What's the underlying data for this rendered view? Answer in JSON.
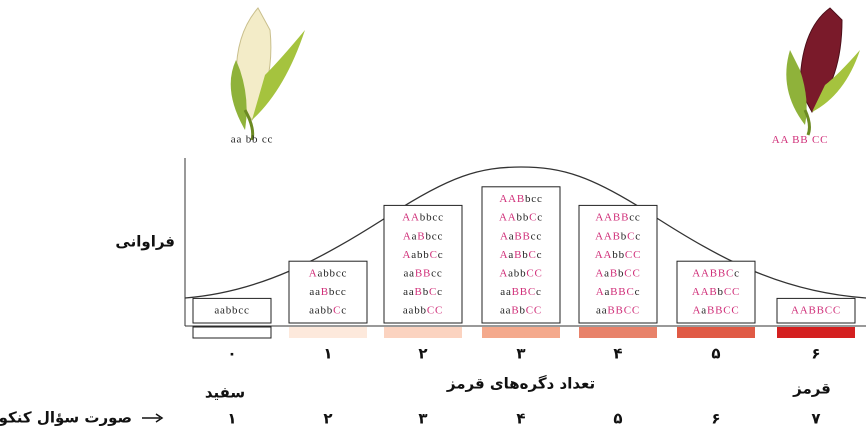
{
  "corn": {
    "white": "aa bb cc",
    "red": "AA BB CC"
  },
  "y_label": "فراوانی",
  "columns": [
    {
      "label": "۰",
      "genotypes": [
        "aabbcc"
      ]
    },
    {
      "label": "۱",
      "genotypes": [
        "Aabbcc",
        "aaBbcc",
        "aabbCc"
      ]
    },
    {
      "label": "۲",
      "genotypes": [
        "AAbbcc",
        "AaBbcc",
        "AabbCc",
        "aaBBcc",
        "aaBbCc",
        "aabbCC"
      ]
    },
    {
      "label": "۳",
      "genotypes": [
        "AABbcc",
        "AAbbCc",
        "AaBBcc",
        "AaBbCc",
        "AabbCC",
        "aaBBCc",
        "aaBbCC"
      ]
    },
    {
      "label": "۴",
      "genotypes": [
        "AABBcc",
        "AABbCc",
        "AAbbCC",
        "AaBbCC",
        "AaBBCc",
        "aaBBCC"
      ]
    },
    {
      "label": "۵",
      "genotypes": [
        "AABBCc",
        "AABbCC",
        "AaBBCC"
      ]
    },
    {
      "label": "۶",
      "genotypes": [
        "AABBCC"
      ]
    }
  ],
  "x_label": "تعداد دگره‌های قرمز",
  "white_label": "سفید",
  "red_label": "قرمز",
  "exam_label": "صورت سؤال کنکور",
  "exam_numbers": [
    "۱",
    "۲",
    "۳",
    "۴",
    "۵",
    "۶",
    "۷"
  ]
}
